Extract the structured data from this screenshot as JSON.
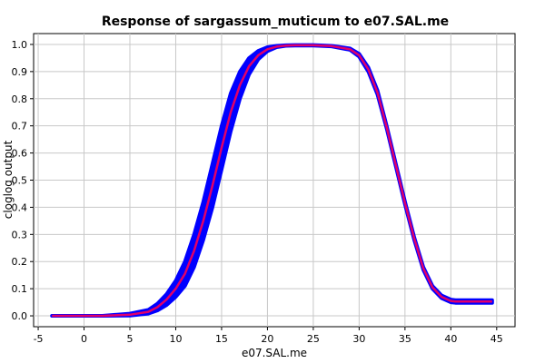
{
  "chart_data": {
    "type": "line",
    "title": "Response of sargassum_muticum to e07.SAL.me",
    "xlabel": "e07.SAL.me",
    "ylabel": "cloglog output",
    "xlim": [
      -5.5,
      47
    ],
    "ylim": [
      -0.04,
      1.04
    ],
    "xticks": [
      -5,
      0,
      5,
      10,
      15,
      20,
      25,
      30,
      35,
      40,
      45
    ],
    "yticks": [
      0.0,
      0.1,
      0.2,
      0.3,
      0.4,
      0.5,
      0.6,
      0.7,
      0.8,
      0.9,
      1.0
    ],
    "grid": true,
    "series": [
      {
        "role": "variability-band",
        "color": "#0000ff",
        "upper": {
          "x": [
            -3.5,
            2,
            5,
            7,
            8,
            9,
            10,
            11,
            12,
            13,
            14,
            15,
            16,
            17,
            18,
            19,
            20,
            21,
            22,
            23,
            25,
            27,
            29,
            30,
            31,
            32,
            33,
            34,
            35,
            36,
            37,
            38,
            39,
            40,
            40.5,
            44.5
          ],
          "y": [
            0.0,
            0.0,
            0.008,
            0.022,
            0.045,
            0.08,
            0.13,
            0.2,
            0.3,
            0.42,
            0.56,
            0.7,
            0.82,
            0.9,
            0.95,
            0.976,
            0.99,
            0.995,
            0.997,
            0.998,
            0.998,
            0.995,
            0.985,
            0.965,
            0.915,
            0.83,
            0.7,
            0.56,
            0.42,
            0.29,
            0.18,
            0.11,
            0.075,
            0.06,
            0.058,
            0.058
          ]
        },
        "lower": {
          "x": [
            -3.5,
            2,
            5,
            7,
            8,
            9,
            10,
            11,
            12,
            13,
            14,
            15,
            16,
            17,
            18,
            19,
            20,
            21,
            22,
            23,
            25,
            27,
            29,
            30,
            31,
            32,
            33,
            34,
            35,
            36,
            37,
            38,
            39,
            40,
            40.5,
            44.5
          ],
          "y": [
            0.0,
            0.0,
            0.001,
            0.008,
            0.02,
            0.04,
            0.07,
            0.11,
            0.18,
            0.28,
            0.4,
            0.54,
            0.68,
            0.8,
            0.89,
            0.945,
            0.975,
            0.99,
            0.995,
            0.996,
            0.996,
            0.993,
            0.98,
            0.955,
            0.9,
            0.815,
            0.69,
            0.55,
            0.41,
            0.28,
            0.17,
            0.1,
            0.065,
            0.05,
            0.048,
            0.048
          ]
        }
      },
      {
        "role": "mean-response",
        "color": "#e0006a",
        "x": [
          -3.5,
          2,
          5,
          7,
          8,
          9,
          10,
          11,
          12,
          13,
          14,
          15,
          16,
          17,
          18,
          19,
          20,
          21,
          22,
          23,
          25,
          27,
          29,
          30,
          31,
          32,
          33,
          34,
          35,
          36,
          37,
          38,
          39,
          40,
          40.5,
          44.5
        ],
        "y": [
          0.0,
          0.0,
          0.004,
          0.015,
          0.032,
          0.06,
          0.1,
          0.155,
          0.24,
          0.35,
          0.48,
          0.62,
          0.75,
          0.85,
          0.92,
          0.96,
          0.982,
          0.992,
          0.996,
          0.997,
          0.997,
          0.994,
          0.982,
          0.96,
          0.908,
          0.822,
          0.695,
          0.555,
          0.415,
          0.285,
          0.175,
          0.105,
          0.07,
          0.055,
          0.053,
          0.053
        ]
      }
    ]
  }
}
